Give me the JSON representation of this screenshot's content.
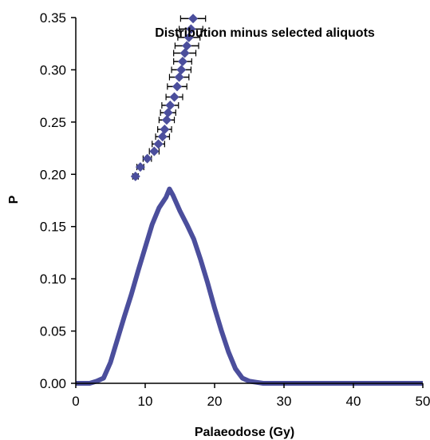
{
  "chart_data": {
    "type": "scatter",
    "title": "Distribution minus selected aliquots",
    "xlabel": "Palaeodose (Gy)",
    "ylabel": "P",
    "xlim": [
      0,
      50
    ],
    "ylim": [
      0,
      0.35
    ],
    "x_ticks": [
      0,
      10,
      20,
      30,
      40,
      50
    ],
    "y_ticks": [
      0.0,
      0.05,
      0.1,
      0.15,
      0.2,
      0.25,
      0.3,
      0.35
    ],
    "x_tick_labels": [
      "0",
      "10",
      "20",
      "30",
      "40",
      "50"
    ],
    "y_tick_labels": [
      "0.00",
      "0.05",
      "0.10",
      "0.15",
      "0.20",
      "0.25",
      "0.30",
      "0.35"
    ],
    "grid": false,
    "legend": "none",
    "colors": {
      "series": "#4b4e9c",
      "axes": "#000000",
      "background": "#ffffff"
    },
    "series": [
      {
        "kind": "line",
        "x": [
          0,
          2,
          3,
          4,
          5,
          6,
          7,
          8,
          9,
          10,
          11,
          12,
          13,
          13.5,
          14,
          15,
          16,
          17,
          18,
          19,
          20,
          21,
          22,
          23,
          24,
          25,
          26,
          27,
          28,
          30,
          35,
          40,
          45,
          50
        ],
        "y": [
          0,
          0,
          0.002,
          0.005,
          0.02,
          0.042,
          0.064,
          0.085,
          0.108,
          0.13,
          0.152,
          0.168,
          0.178,
          0.186,
          0.18,
          0.165,
          0.152,
          0.138,
          0.118,
          0.096,
          0.072,
          0.05,
          0.03,
          0.014,
          0.005,
          0.002,
          0.001,
          0,
          0,
          0,
          0,
          0,
          0,
          0
        ]
      },
      {
        "kind": "points_with_xerr",
        "x": [
          8.6,
          9.3,
          10.3,
          11.3,
          11.9,
          12.5,
          12.8,
          13.1,
          13.3,
          13.6,
          14.2,
          14.6,
          14.9,
          15.2,
          15.4,
          15.7,
          16.0,
          16.3,
          16.6,
          16.9
        ],
        "y": [
          0.198,
          0.207,
          0.215,
          0.222,
          0.229,
          0.236,
          0.243,
          0.252,
          0.259,
          0.266,
          0.274,
          0.284,
          0.293,
          0.3,
          0.308,
          0.316,
          0.323,
          0.331,
          0.339,
          0.349
        ],
        "xerr": [
          0.4,
          0.5,
          0.6,
          0.7,
          0.9,
          1.0,
          1.0,
          1.1,
          1.1,
          1.2,
          1.2,
          1.4,
          1.4,
          1.4,
          1.3,
          1.6,
          1.7,
          1.6,
          1.7,
          1.8
        ]
      }
    ]
  }
}
